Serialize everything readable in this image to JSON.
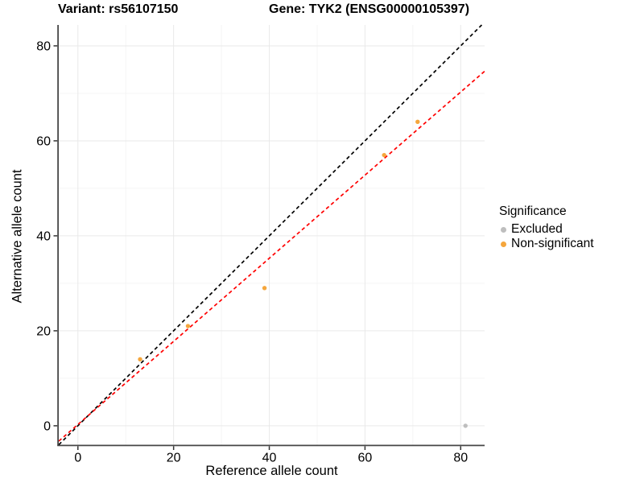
{
  "chart_data": {
    "type": "scatter",
    "title_left": "Variant: rs56107150",
    "title_right": "Gene: TYK2 (ENSG00000105397)",
    "xlabel": "Reference allele count",
    "ylabel": "Alternative allele count",
    "xlim": [
      -4,
      85
    ],
    "ylim": [
      -4,
      84.4
    ],
    "x_ticks": [
      0,
      20,
      40,
      60,
      80
    ],
    "y_ticks": [
      0,
      20,
      40,
      60,
      80
    ],
    "x_minor_ticks": [
      10,
      30,
      50,
      70
    ],
    "y_minor_ticks": [
      10,
      30,
      50,
      70
    ],
    "grid": true,
    "colors": {
      "excluded": "#BEBEBE",
      "non_significant": "#F5A63C",
      "identity_line": "#000000",
      "fit_line": "#FF0000",
      "major_grid": "#E9E9E9",
      "minor_grid": "#F5F5F5",
      "axis_line": "#474747"
    },
    "legend": {
      "title": "Significance",
      "position": "right",
      "entries": [
        {
          "label": "Excluded",
          "color": "#BEBEBE"
        },
        {
          "label": "Non-significant",
          "color": "#F5A63C"
        }
      ]
    },
    "series": [
      {
        "name": "Excluded",
        "color": "#BEBEBE",
        "points": [
          {
            "x": 81,
            "y": 0
          }
        ]
      },
      {
        "name": "Non-significant",
        "color": "#F5A63C",
        "points": [
          {
            "x": 13,
            "y": 14
          },
          {
            "x": 23,
            "y": 21
          },
          {
            "x": 39,
            "y": 29
          },
          {
            "x": 64,
            "y": 57
          },
          {
            "x": 71,
            "y": 64
          }
        ]
      }
    ],
    "lines": [
      {
        "name": "identity",
        "color": "#000000",
        "dashed": true,
        "slope": 1,
        "intercept": 0,
        "x1": -4,
        "y1": -4,
        "x2": 84.4,
        "y2": 84.4
      },
      {
        "name": "fit",
        "color": "#FF0000",
        "dashed": true,
        "slope": 0.875,
        "intercept": 0.27,
        "x1": -4,
        "y1": -3.23,
        "x2": 85,
        "y2": 74.65
      }
    ]
  }
}
